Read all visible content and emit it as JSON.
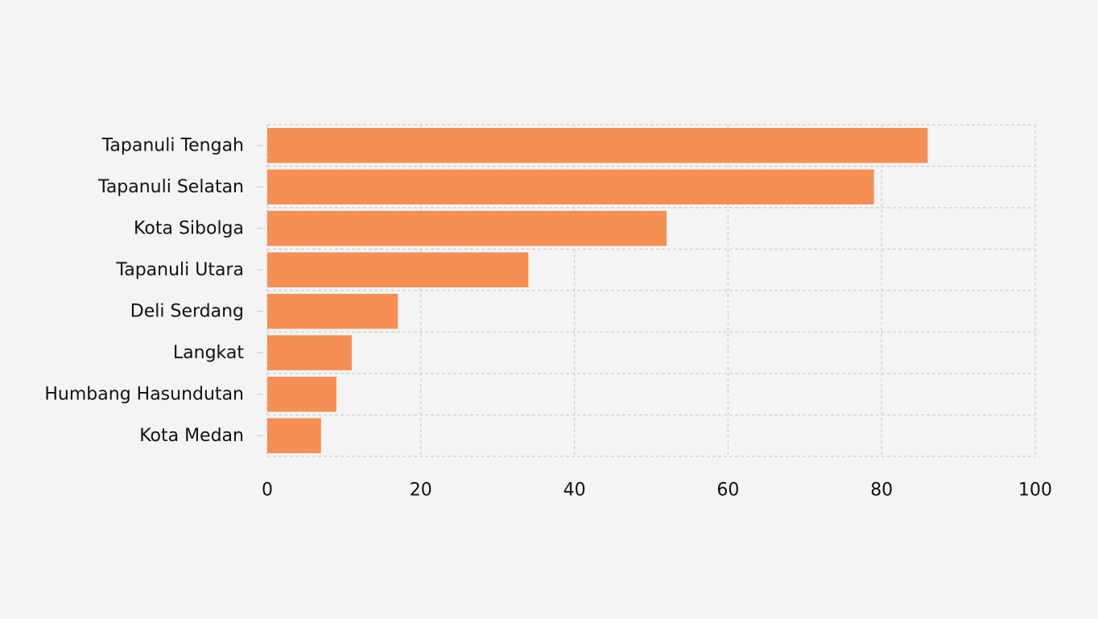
{
  "chart_data": {
    "type": "bar",
    "orientation": "horizontal",
    "categories": [
      "Tapanuli Tengah",
      "Tapanuli Selatan",
      "Kota Sibolga",
      "Tapanuli Utara",
      "Deli Serdang",
      "Langkat",
      "Humbang Hasundutan",
      "Kota Medan"
    ],
    "values": [
      86,
      79,
      52,
      34,
      17,
      11,
      9,
      7
    ],
    "x_ticks": [
      "0",
      "20",
      "40",
      "60",
      "80",
      "100"
    ],
    "xlim": [
      0,
      100
    ],
    "title": "",
    "xlabel": "",
    "ylabel": "",
    "grid": true,
    "grid_style": "dashed",
    "legend": "none",
    "colors": {
      "bar": "#f4894b",
      "grid": "#cccccc",
      "background": "#f4f4f4",
      "text": "#111111"
    }
  }
}
